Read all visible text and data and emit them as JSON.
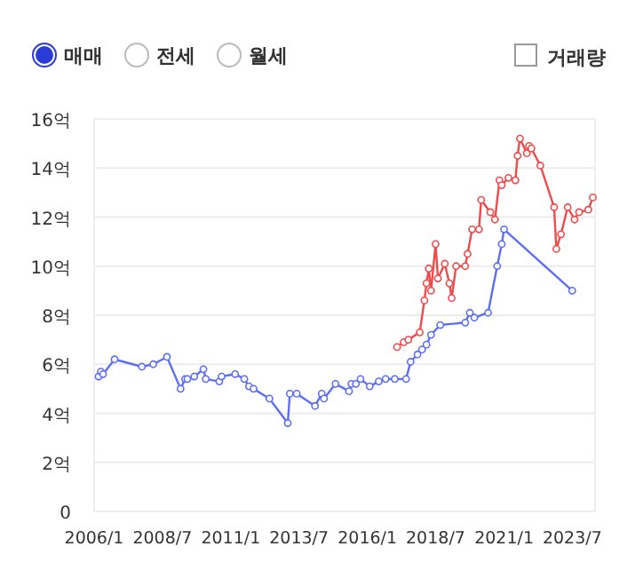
{
  "chart_data": {
    "type": "line",
    "annotations": [
      "매매",
      "전세",
      "월세",
      "거래량"
    ],
    "xlim": [
      "2006-01",
      "2024-05"
    ],
    "xticks": [
      {
        "value": "2006-01",
        "label": "2006/1"
      },
      {
        "value": "2008-07",
        "label": "2008/7"
      },
      {
        "value": "2011-01",
        "label": "2011/1"
      },
      {
        "value": "2013-07",
        "label": "2013/7"
      },
      {
        "value": "2016-01",
        "label": "2016/1"
      },
      {
        "value": "2018-07",
        "label": "2018/7"
      },
      {
        "value": "2021-01",
        "label": "2021/1"
      },
      {
        "value": "2023-07",
        "label": "2023/7"
      }
    ],
    "ylim": [
      0,
      16
    ],
    "yticks": [
      0,
      {
        "value": 2,
        "label": "2억"
      },
      {
        "value": 4,
        "label": "4억"
      },
      {
        "value": 6,
        "label": "6억"
      },
      {
        "value": 8,
        "label": "8억"
      },
      {
        "value": 10,
        "label": "10억"
      },
      {
        "value": 12,
        "label": "12억"
      },
      {
        "value": 14,
        "label": "14억"
      },
      {
        "value": 16,
        "label": "16억"
      }
    ],
    "grid": "y",
    "marker": "circle",
    "line_style": "solid",
    "series": [
      {
        "color": "#5b6ef5",
        "x": [
          "2006-03",
          "2006-04",
          "2006-05",
          "2006-10",
          "2007-10",
          "2008-03",
          "2008-09",
          "2009-03",
          "2009-05",
          "2009-06",
          "2009-09",
          "2010-01",
          "2010-02",
          "2010-08",
          "2010-09",
          "2011-03",
          "2011-07",
          "2011-09",
          "2011-11",
          "2012-06",
          "2013-02",
          "2013-03",
          "2013-06",
          "2014-02",
          "2014-05",
          "2014-06",
          "2014-11",
          "2015-05",
          "2015-06",
          "2015-08",
          "2015-10",
          "2016-02",
          "2016-06",
          "2016-09",
          "2017-01",
          "2017-06",
          "2017-08",
          "2017-11",
          "2018-01",
          "2018-03",
          "2018-05",
          "2018-09",
          "2019-08",
          "2019-10",
          "2019-12",
          "2020-06",
          "2020-10",
          "2020-12",
          "2021-01",
          "2023-07"
        ],
        "values": [
          5.5,
          5.7,
          5.6,
          6.2,
          5.9,
          6.0,
          6.3,
          5.0,
          5.4,
          5.4,
          5.5,
          5.8,
          5.4,
          5.3,
          5.5,
          5.6,
          5.4,
          5.1,
          5.0,
          4.6,
          3.6,
          4.8,
          4.8,
          4.3,
          4.8,
          4.6,
          5.2,
          4.9,
          5.2,
          5.2,
          5.4,
          5.1,
          5.3,
          5.4,
          5.4,
          5.4,
          6.1,
          6.4,
          6.6,
          6.8,
          7.2,
          7.6,
          7.7,
          8.1,
          7.9,
          8.1,
          10.0,
          10.9,
          11.5,
          9.0
        ]
      },
      {
        "color": "#f04a4a",
        "x": [
          "2017-02",
          "2017-05",
          "2017-07",
          "2017-12",
          "2018-02",
          "2018-03",
          "2018-04",
          "2018-05",
          "2018-07",
          "2018-08",
          "2018-11",
          "2019-01",
          "2019-02",
          "2019-04",
          "2019-08",
          "2019-09",
          "2019-11",
          "2020-02",
          "2020-03",
          "2020-07",
          "2020-09",
          "2020-11",
          "2020-12",
          "2021-03",
          "2021-06",
          "2021-07",
          "2021-08",
          "2021-11",
          "2021-12",
          "2022-01",
          "2022-05",
          "2022-11",
          "2022-12",
          "2023-02",
          "2023-05",
          "2023-08",
          "2023-10",
          "2024-02",
          "2024-04"
        ],
        "values": [
          6.7,
          6.9,
          7.0,
          7.3,
          8.6,
          9.3,
          9.9,
          9.0,
          10.9,
          9.5,
          10.1,
          9.3,
          8.7,
          10.0,
          10.0,
          10.5,
          11.5,
          11.5,
          12.7,
          12.2,
          11.9,
          13.5,
          13.3,
          13.6,
          13.5,
          14.5,
          15.2,
          14.6,
          14.9,
          14.8,
          14.1,
          12.4,
          10.7,
          11.3,
          12.4,
          11.9,
          12.2,
          12.3,
          12.8
        ]
      }
    ]
  }
}
